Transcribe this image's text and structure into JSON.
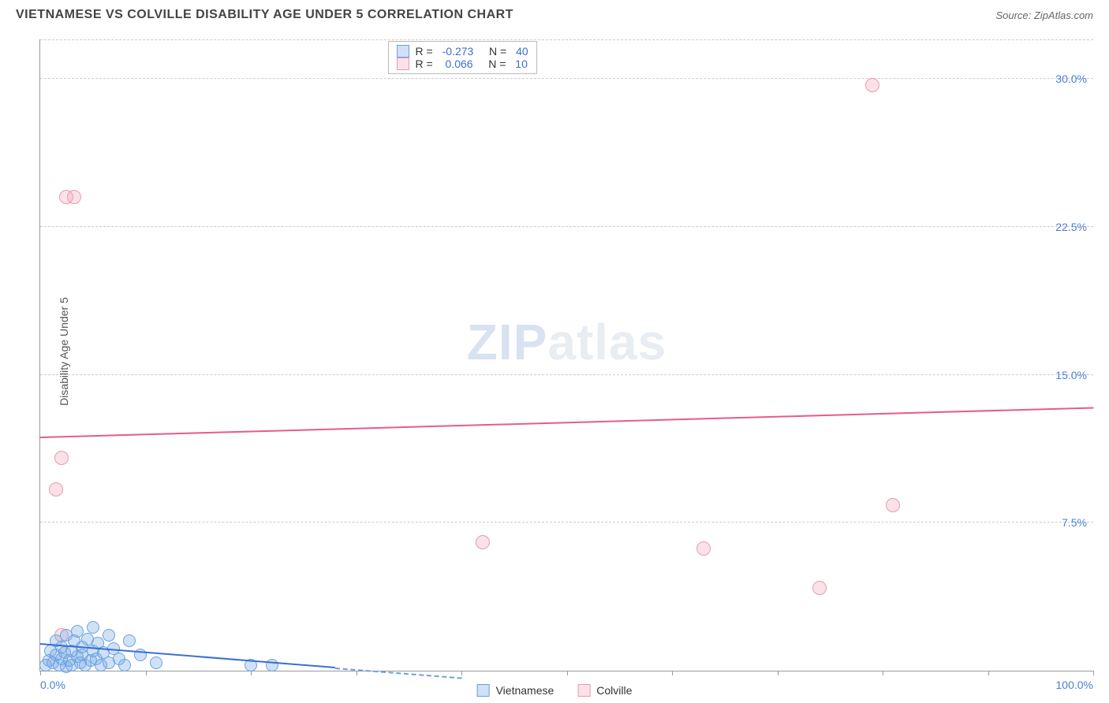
{
  "header": {
    "title": "VIETNAMESE VS COLVILLE DISABILITY AGE UNDER 5 CORRELATION CHART",
    "source": "Source: ZipAtlas.com"
  },
  "ylabel": "Disability Age Under 5",
  "watermark_zip": "ZIP",
  "watermark_atlas": "atlas",
  "chart": {
    "type": "scatter",
    "background_color": "#ffffff",
    "grid_color": "#cccccc",
    "axis_color": "#999999",
    "xlim": [
      0,
      100
    ],
    "ylim": [
      0,
      32
    ],
    "ytick_labels": [
      "7.5%",
      "15.0%",
      "22.5%",
      "30.0%"
    ],
    "ytick_values": [
      7.5,
      15.0,
      22.5,
      30.0
    ],
    "xtick_values": [
      0,
      10,
      20,
      30,
      40,
      50,
      60,
      70,
      80,
      90,
      100
    ],
    "x_left_label": "0.0%",
    "x_right_label": "100.0%",
    "tick_label_color": "#4a7fd8",
    "tick_label_fontsize": 14,
    "title_fontsize": 16,
    "ylabel_fontsize": 14
  },
  "series": {
    "vietnamese": {
      "label": "Vietnamese",
      "fill_color": "rgba(120, 170, 230, 0.35)",
      "stroke_color": "#6aa0e0",
      "trend_color": "#3b6fd0",
      "trend_dash_color": "#6aa0e0",
      "point_radius": 8,
      "trend_solid": {
        "x1": 0,
        "y1": 1.3,
        "x2": 28,
        "y2": 0.1
      },
      "trend_dash": {
        "x1": 28,
        "y1": 0.1,
        "x2": 40,
        "y2": -0.4
      },
      "points": [
        {
          "x": 0.5,
          "y": 0.3
        },
        {
          "x": 0.8,
          "y": 0.5
        },
        {
          "x": 1.0,
          "y": 1.0
        },
        {
          "x": 1.2,
          "y": 0.4
        },
        {
          "x": 1.5,
          "y": 0.8
        },
        {
          "x": 1.5,
          "y": 1.5
        },
        {
          "x": 1.8,
          "y": 0.3
        },
        {
          "x": 2.0,
          "y": 1.2
        },
        {
          "x": 2.0,
          "y": 0.6
        },
        {
          "x": 2.3,
          "y": 0.9
        },
        {
          "x": 2.5,
          "y": 0.2
        },
        {
          "x": 2.5,
          "y": 1.8
        },
        {
          "x": 2.8,
          "y": 0.5
        },
        {
          "x": 3.0,
          "y": 1.0
        },
        {
          "x": 3.0,
          "y": 0.3
        },
        {
          "x": 3.2,
          "y": 1.5
        },
        {
          "x": 3.5,
          "y": 0.7
        },
        {
          "x": 3.5,
          "y": 2.0
        },
        {
          "x": 3.8,
          "y": 0.4
        },
        {
          "x": 4.0,
          "y": 1.2
        },
        {
          "x": 4.0,
          "y": 0.8
        },
        {
          "x": 4.3,
          "y": 0.3
        },
        {
          "x": 4.5,
          "y": 1.6
        },
        {
          "x": 4.8,
          "y": 0.5
        },
        {
          "x": 5.0,
          "y": 1.0
        },
        {
          "x": 5.0,
          "y": 2.2
        },
        {
          "x": 5.3,
          "y": 0.6
        },
        {
          "x": 5.5,
          "y": 1.4
        },
        {
          "x": 5.8,
          "y": 0.3
        },
        {
          "x": 6.0,
          "y": 0.9
        },
        {
          "x": 6.5,
          "y": 1.8
        },
        {
          "x": 6.5,
          "y": 0.4
        },
        {
          "x": 7.0,
          "y": 1.1
        },
        {
          "x": 7.5,
          "y": 0.6
        },
        {
          "x": 8.0,
          "y": 0.3
        },
        {
          "x": 8.5,
          "y": 1.5
        },
        {
          "x": 9.5,
          "y": 0.8
        },
        {
          "x": 11.0,
          "y": 0.4
        },
        {
          "x": 20.0,
          "y": 0.3
        },
        {
          "x": 22.0,
          "y": 0.3
        }
      ]
    },
    "colville": {
      "label": "Colville",
      "fill_color": "rgba(240, 160, 180, 0.3)",
      "stroke_color": "#e89ab0",
      "trend_color": "#e75b8a",
      "point_radius": 9,
      "trend_solid": {
        "x1": 0,
        "y1": 11.8,
        "x2": 100,
        "y2": 13.3
      },
      "points": [
        {
          "x": 1.5,
          "y": 9.2
        },
        {
          "x": 2.0,
          "y": 10.8
        },
        {
          "x": 2.5,
          "y": 24.0
        },
        {
          "x": 3.2,
          "y": 24.0
        },
        {
          "x": 42.0,
          "y": 6.5
        },
        {
          "x": 63.0,
          "y": 6.2
        },
        {
          "x": 74.0,
          "y": 4.2
        },
        {
          "x": 81.0,
          "y": 8.4
        },
        {
          "x": 79.0,
          "y": 29.7
        },
        {
          "x": 2.0,
          "y": 1.8
        }
      ]
    }
  },
  "stats": {
    "rows": [
      {
        "swatch_fill": "rgba(120,170,230,0.35)",
        "swatch_border": "#6aa0e0",
        "r_label": "R = ",
        "r_value": "-0.273",
        "n_label": "   N = ",
        "n_value": "40"
      },
      {
        "swatch_fill": "rgba(240,160,180,0.3)",
        "swatch_border": "#e89ab0",
        "r_label": "R = ",
        "r_value": " 0.066",
        "n_label": "   N = ",
        "n_value": "10"
      }
    ]
  },
  "legend": [
    {
      "label": "Vietnamese",
      "fill": "rgba(120,170,230,0.35)",
      "border": "#6aa0e0"
    },
    {
      "label": "Colville",
      "fill": "rgba(240,160,180,0.3)",
      "border": "#e89ab0"
    }
  ]
}
